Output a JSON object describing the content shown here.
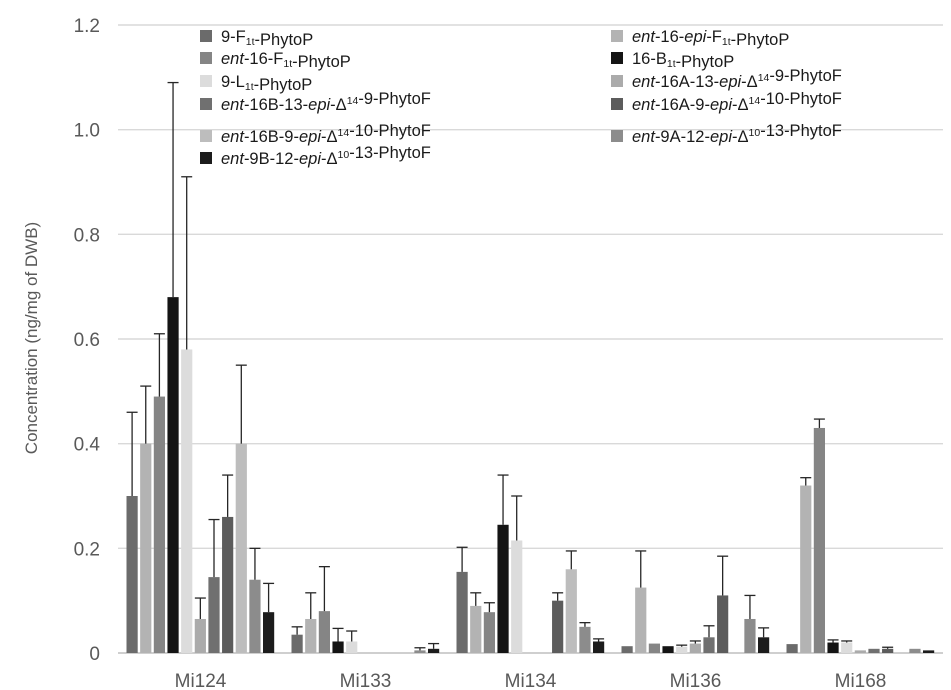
{
  "chart_data": {
    "type": "bar",
    "ylabel": "Concentration (ng/mg of DWB)",
    "ylim": [
      0,
      1.2
    ],
    "yticks": [
      "0",
      "0.2",
      "0.4",
      "0.6",
      "0.8",
      "1.0",
      "1.2"
    ],
    "grid": "horizontal",
    "legend": "top-right, two columns",
    "error_bars": true,
    "categories": [
      "Mi124",
      "Mi133",
      "Mi134",
      "Mi136",
      "Mi168"
    ],
    "series": [
      {
        "name": "9-F1t-PhytoP",
        "name_parts": [
          {
            "t": "9-F"
          },
          {
            "t": "1t",
            "sub": true
          },
          {
            "t": "-PhytoP"
          }
        ],
        "color": "#6b6b6b",
        "values": [
          0.3,
          0.035,
          0.155,
          0.013,
          0.017
        ],
        "errors": [
          0.16,
          0.015,
          0.047,
          0.0,
          0.0
        ]
      },
      {
        "name": "ent-16-epi-F1t-PhytoP",
        "name_parts": [
          {
            "t": "ent",
            "i": true
          },
          {
            "t": "-16-"
          },
          {
            "t": "epi",
            "i": true
          },
          {
            "t": "-F"
          },
          {
            "t": "1t",
            "sub": true
          },
          {
            "t": "-PhytoP"
          }
        ],
        "color": "#b3b3b3",
        "values": [
          0.4,
          0.065,
          0.09,
          0.125,
          0.32
        ],
        "errors": [
          0.11,
          0.05,
          0.025,
          0.07,
          0.015
        ]
      },
      {
        "name": "ent-16-F1t-PhytoP",
        "name_parts": [
          {
            "t": "ent",
            "i": true
          },
          {
            "t": "-16-F"
          },
          {
            "t": "1t",
            "sub": true
          },
          {
            "t": "-PhytoP"
          }
        ],
        "color": "#858585",
        "values": [
          0.49,
          0.08,
          0.078,
          0.018,
          0.43
        ],
        "errors": [
          0.12,
          0.085,
          0.018,
          0.0,
          0.017
        ]
      },
      {
        "name": "16-B1t-PhytoP",
        "name_parts": [
          {
            "t": "16-B"
          },
          {
            "t": "1t",
            "sub": true
          },
          {
            "t": "-PhytoP"
          }
        ],
        "color": "#141414",
        "values": [
          0.68,
          0.022,
          0.245,
          0.013,
          0.02
        ],
        "errors": [
          0.41,
          0.025,
          0.095,
          0.0,
          0.005
        ]
      },
      {
        "name": "9-L1t-PhytoP",
        "name_parts": [
          {
            "t": "9-L"
          },
          {
            "t": "1t",
            "sub": true
          },
          {
            "t": "-PhytoP"
          }
        ],
        "color": "#dcdcdc",
        "values": [
          0.58,
          0.022,
          0.215,
          0.012,
          0.02
        ],
        "errors": [
          0.33,
          0.02,
          0.085,
          0.003,
          0.003
        ]
      },
      {
        "name": "ent-16A-13-epi-Δ14-9-PhytoF",
        "name_parts": [
          {
            "t": "ent",
            "i": true
          },
          {
            "t": "-16A-13-"
          },
          {
            "t": "epi",
            "i": true
          },
          {
            "t": "-Δ"
          },
          {
            "t": "14",
            "sup": true
          },
          {
            "t": "-9-PhytoF"
          }
        ],
        "color": "#ababab",
        "values": [
          0.065,
          0.0,
          0.0,
          0.018,
          0.005
        ],
        "errors": [
          0.04,
          0.0,
          0.0,
          0.005,
          0.0
        ]
      },
      {
        "name": "ent-16B-13-epi-Δ14-9-PhytoF",
        "name_parts": [
          {
            "t": "ent",
            "i": true
          },
          {
            "t": "-16B-13-"
          },
          {
            "t": "epi",
            "i": true
          },
          {
            "t": "-Δ"
          },
          {
            "t": "14",
            "sup": true
          },
          {
            "t": "-9-PhytoF"
          }
        ],
        "color": "#707070",
        "values": [
          0.145,
          0.0,
          0.0,
          0.03,
          0.008
        ],
        "errors": [
          0.11,
          0.0,
          0.0,
          0.022,
          0.0
        ]
      },
      {
        "name": "ent-16A-9-epi-Δ14-10-PhytoF",
        "name_parts": [
          {
            "t": "ent",
            "i": true
          },
          {
            "t": "-16A-9-"
          },
          {
            "t": "epi",
            "i": true
          },
          {
            "t": "-Δ"
          },
          {
            "t": "14",
            "sup": true
          },
          {
            "t": "-10-PhytoF"
          }
        ],
        "color": "#5c5c5c",
        "values": [
          0.26,
          0.0,
          0.1,
          0.11,
          0.008
        ],
        "errors": [
          0.08,
          0.0,
          0.015,
          0.075,
          0.003
        ]
      },
      {
        "name": "ent-16B-9-epi-Δ14-10-PhytoF",
        "name_parts": [
          {
            "t": "ent",
            "i": true
          },
          {
            "t": "-16B-9-"
          },
          {
            "t": "epi",
            "i": true
          },
          {
            "t": "-Δ"
          },
          {
            "t": "14",
            "sup": true
          },
          {
            "t": "-10-PhytoF"
          }
        ],
        "color": "#bdbdbd",
        "values": [
          0.4,
          0.0,
          0.16,
          0.0,
          0.0
        ],
        "errors": [
          0.15,
          0.0,
          0.035,
          0.0,
          0.0
        ]
      },
      {
        "name": "ent-9A-12-epi-Δ10-13-PhytoF",
        "name_parts": [
          {
            "t": "ent",
            "i": true
          },
          {
            "t": "-9A-12-"
          },
          {
            "t": "epi",
            "i": true
          },
          {
            "t": "-Δ"
          },
          {
            "t": "10",
            "sup": true
          },
          {
            "t": "-13-PhytoF"
          }
        ],
        "color": "#8c8c8c",
        "values": [
          0.14,
          0.005,
          0.05,
          0.065,
          0.008
        ],
        "errors": [
          0.06,
          0.005,
          0.008,
          0.045,
          0.0
        ]
      },
      {
        "name": "ent-9B-12-epi-Δ10-13-PhytoF",
        "name_parts": [
          {
            "t": "ent",
            "i": true
          },
          {
            "t": "-9B-12-"
          },
          {
            "t": "epi",
            "i": true
          },
          {
            "t": "-Δ"
          },
          {
            "t": "10",
            "sup": true
          },
          {
            "t": "-13-PhytoF"
          }
        ],
        "color": "#1c1c1c",
        "values": [
          0.078,
          0.008,
          0.022,
          0.03,
          0.005
        ],
        "errors": [
          0.055,
          0.01,
          0.005,
          0.018,
          0.0
        ]
      }
    ]
  }
}
